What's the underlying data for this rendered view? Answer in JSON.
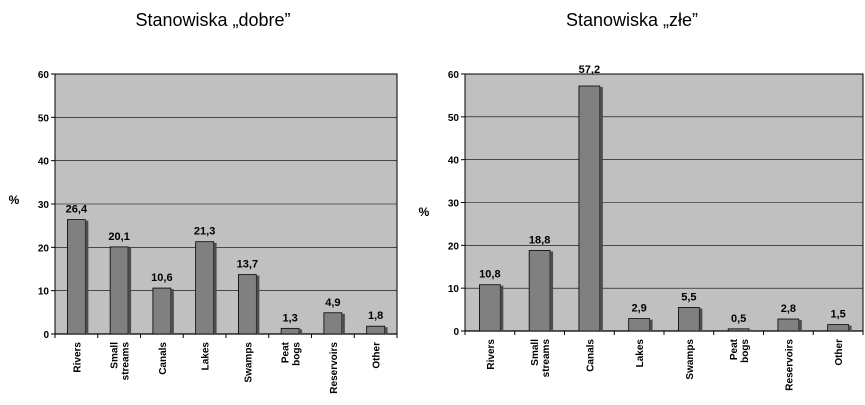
{
  "chart_data": [
    {
      "type": "bar",
      "title": "Stanowiska „dobre”",
      "ylabel": "%",
      "ylim": [
        0,
        60
      ],
      "yticks": [
        "0",
        "10",
        "20",
        "30",
        "40",
        "50",
        "60"
      ],
      "grid": true,
      "categories": [
        "Rivers",
        "Small streams",
        "Canals",
        "Lakes",
        "Swamps",
        "Peat bogs",
        "Reservoirs",
        "Other"
      ],
      "values": [
        26.4,
        20.1,
        10.6,
        21.3,
        13.7,
        1.3,
        4.9,
        1.8
      ],
      "data_labels": [
        "26,4",
        "20,1",
        "10,6",
        "21,3",
        "13,7",
        "1,3",
        "4,9",
        "1,8"
      ],
      "colors": {
        "bar": "#808080",
        "bar_side": "#4d4d4d",
        "plot_bg": "#c0c0c0"
      }
    },
    {
      "type": "bar",
      "title": "Stanowiska „złe”",
      "ylabel": "%",
      "ylim": [
        0,
        60
      ],
      "yticks": [
        "0",
        "10",
        "20",
        "30",
        "40",
        "50",
        "60"
      ],
      "grid": true,
      "categories": [
        "Rivers",
        "Small streams",
        "Canals",
        "Lakes",
        "Swamps",
        "Peat bogs",
        "Reservoirs",
        "Other"
      ],
      "values": [
        10.8,
        18.8,
        57.2,
        2.9,
        5.5,
        0.5,
        2.8,
        1.5
      ],
      "data_labels": [
        "10,8",
        "18,8",
        "57,2",
        "2,9",
        "5,5",
        "0,5",
        "2,8",
        "1,5"
      ],
      "colors": {
        "bar": "#808080",
        "bar_side": "#4d4d4d",
        "plot_bg": "#c0c0c0"
      }
    }
  ]
}
